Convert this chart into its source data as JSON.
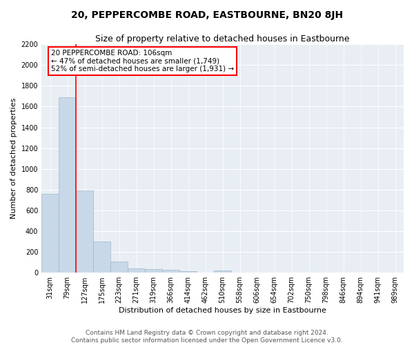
{
  "title": "20, PEPPERCOMBE ROAD, EASTBOURNE, BN20 8JH",
  "subtitle": "Size of property relative to detached houses in Eastbourne",
  "xlabel": "Distribution of detached houses by size in Eastbourne",
  "ylabel": "Number of detached properties",
  "bar_color": "#c8d8e8",
  "bar_edge_color": "#a0b8cc",
  "background_color": "#e8eef4",
  "categories": [
    "31sqm",
    "79sqm",
    "127sqm",
    "175sqm",
    "223sqm",
    "271sqm",
    "319sqm",
    "366sqm",
    "414sqm",
    "462sqm",
    "510sqm",
    "558sqm",
    "606sqm",
    "654sqm",
    "702sqm",
    "750sqm",
    "798sqm",
    "846sqm",
    "894sqm",
    "941sqm",
    "989sqm"
  ],
  "values": [
    760,
    1690,
    790,
    300,
    110,
    43,
    32,
    28,
    15,
    0,
    22,
    0,
    0,
    0,
    0,
    0,
    0,
    0,
    0,
    0,
    0
  ],
  "annotation_text": "20 PEPPERCOMBE ROAD: 106sqm\n← 47% of detached houses are smaller (1,749)\n52% of semi-detached houses are larger (1,931) →",
  "annotation_box_color": "white",
  "annotation_box_edge_color": "red",
  "vline_color": "red",
  "red_line_x": 1.5,
  "ylim": [
    0,
    2200
  ],
  "yticks": [
    0,
    200,
    400,
    600,
    800,
    1000,
    1200,
    1400,
    1600,
    1800,
    2000,
    2200
  ],
  "footer_line1": "Contains HM Land Registry data © Crown copyright and database right 2024.",
  "footer_line2": "Contains public sector information licensed under the Open Government Licence v3.0.",
  "title_fontsize": 10,
  "subtitle_fontsize": 9,
  "xlabel_fontsize": 8,
  "ylabel_fontsize": 8,
  "tick_fontsize": 7,
  "annotation_fontsize": 7.5,
  "footer_fontsize": 6.5
}
